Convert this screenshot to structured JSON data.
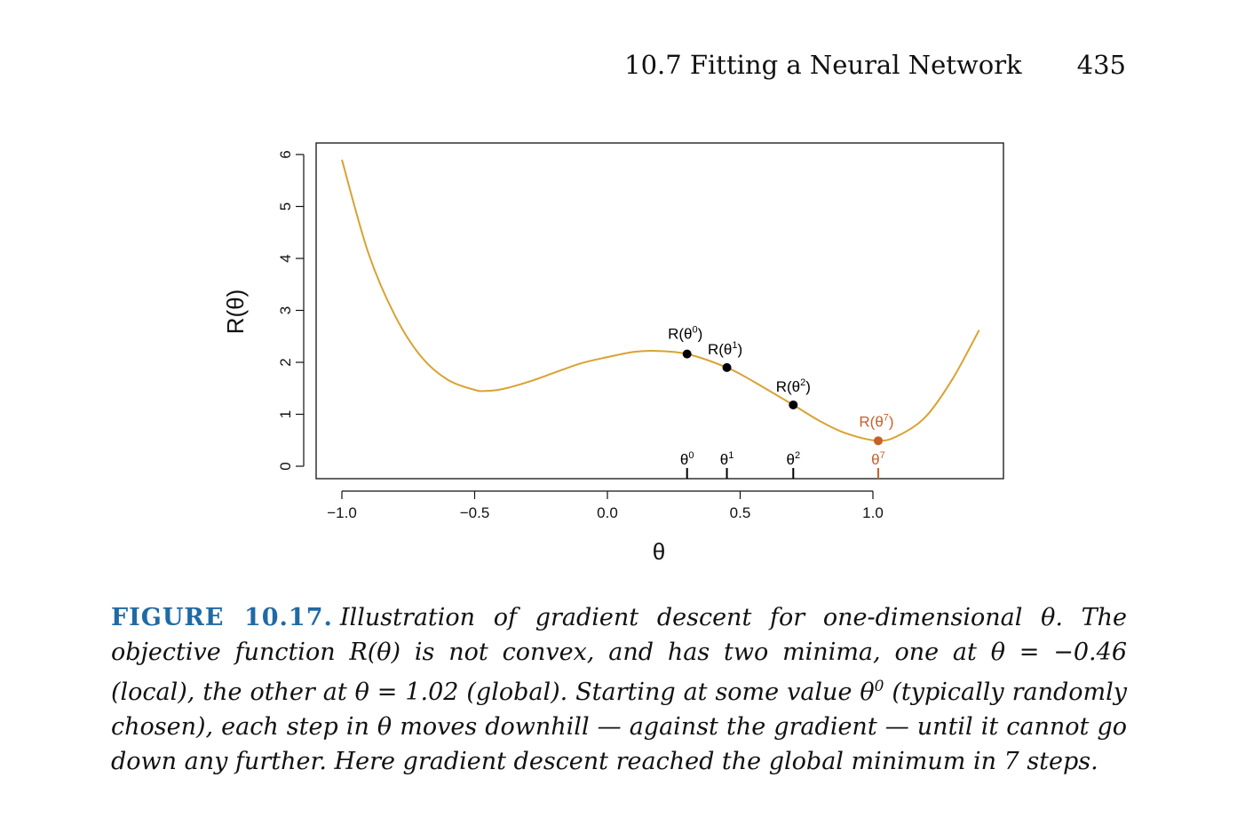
{
  "header": {
    "section": "10.7 Fitting a Neural Network",
    "page_number": "435"
  },
  "chart_data": {
    "type": "line",
    "xlabel": "θ",
    "ylabel": "R(θ)",
    "xlim": [
      -1.1,
      1.5
    ],
    "ylim": [
      -0.2,
      6.25
    ],
    "x_ticks": [
      -1.0,
      -0.5,
      0.0,
      0.5,
      1.0
    ],
    "x_tick_labels": [
      "−1.0",
      "−0.5",
      "0.0",
      "0.5",
      "1.0"
    ],
    "y_ticks": [
      0,
      1,
      2,
      3,
      4,
      5,
      6
    ],
    "y_tick_labels": [
      "0",
      "1",
      "2",
      "3",
      "4",
      "5",
      "6"
    ],
    "grid": false,
    "curve_color": "#d9a232",
    "highlight_color": "#c8602a",
    "series": [
      {
        "x": [
          -1.0,
          -0.9,
          -0.8,
          -0.7,
          -0.6,
          -0.5,
          -0.46,
          -0.4,
          -0.3,
          -0.2,
          -0.1,
          0.0,
          0.1,
          0.18,
          0.3,
          0.45,
          0.55,
          0.7,
          0.8,
          0.9,
          1.02,
          1.1,
          1.2,
          1.3,
          1.4
        ],
        "y": [
          5.9,
          4.1,
          2.9,
          2.1,
          1.66,
          1.47,
          1.45,
          1.48,
          1.62,
          1.8,
          1.98,
          2.1,
          2.2,
          2.22,
          2.16,
          1.9,
          1.63,
          1.18,
          0.87,
          0.63,
          0.49,
          0.6,
          0.96,
          1.68,
          2.62
        ]
      }
    ],
    "points": [
      {
        "x": 0.3,
        "y": 2.16,
        "label_top": "R(θ",
        "label_sup": "0",
        "tick_label": "θ",
        "tick_sup": "0",
        "highlight": false
      },
      {
        "x": 0.45,
        "y": 1.9,
        "label_top": "R(θ",
        "label_sup": "1",
        "tick_label": "θ",
        "tick_sup": "1",
        "highlight": false
      },
      {
        "x": 0.7,
        "y": 1.18,
        "label_top": "R(θ",
        "label_sup": "2",
        "tick_label": "θ",
        "tick_sup": "2",
        "highlight": false
      },
      {
        "x": 1.02,
        "y": 0.49,
        "label_top": "R(θ",
        "label_sup": "7",
        "tick_label": "θ",
        "tick_sup": "7",
        "highlight": true
      }
    ]
  },
  "caption": {
    "label": "FIGURE 10.17.",
    "part1": "Illustration of gradient descent for one-dimensional θ. The objective function R(θ) is not convex, and has two minima, one at θ = −0.46 (local), the other at θ = 1.02 (global). Starting at some value θ",
    "sup": "0",
    "part2": " (typically randomly chosen), each step in θ moves downhill — against the gradient — until it cannot go down any further. Here gradient descent reached the global minimum in 7 steps."
  }
}
